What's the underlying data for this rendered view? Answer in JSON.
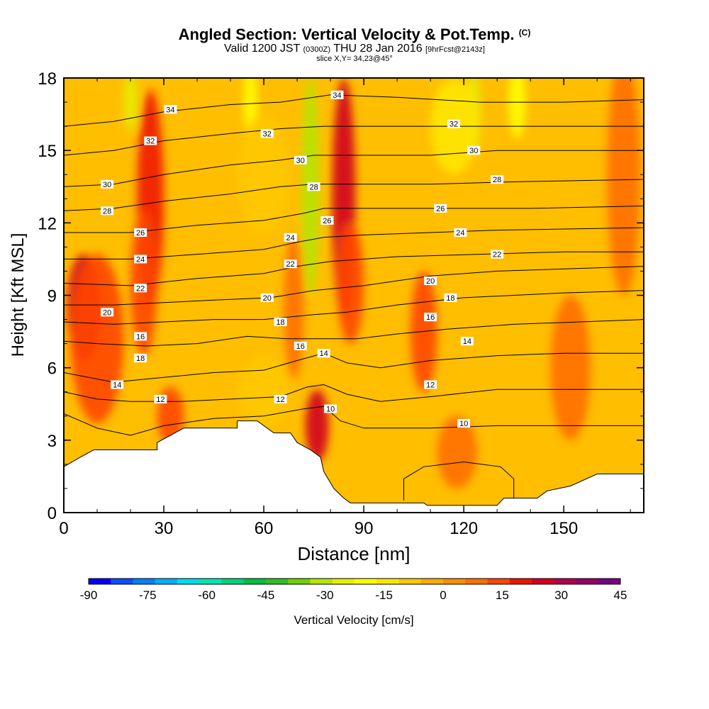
{
  "header": {
    "title": "Angled Section: Vertical Velocity & Pot.Temp.",
    "title_suffix": "(C)",
    "valid_prefix": "Valid 1200 JST",
    "valid_utc": "(0300Z)",
    "valid_date": "THU 28 Jan 2016",
    "forecast": "[9hrFcst@2143z]",
    "slice": "slice X,Y= 34,23@45°"
  },
  "chart_data": {
    "type": "heatmap",
    "title": "Angled Section: Vertical Velocity & Pot.Temp.",
    "xlabel": "Distance [nm]",
    "ylabel": "Height [Kft MSL]",
    "xlim": [
      0,
      174
    ],
    "ylim": [
      0,
      18
    ],
    "x_ticks": [
      "0",
      "30",
      "60",
      "90",
      "120",
      "150"
    ],
    "y_ticks": [
      "0",
      "3",
      "6",
      "9",
      "12",
      "15",
      "18"
    ],
    "colorbar": {
      "label": "Vertical Velocity [cm/s]",
      "tick_labels": [
        "-90",
        "-75",
        "-60",
        "-45",
        "-30",
        "-15",
        "0",
        "15",
        "30",
        "45"
      ],
      "colors": [
        "#0000ff",
        "#0a50ff",
        "#0080ff",
        "#00b0ff",
        "#00dcf0",
        "#00e6b4",
        "#00d278",
        "#00c040",
        "#30c020",
        "#70d000",
        "#b4e600",
        "#e6f000",
        "#ffff00",
        "#ffe600",
        "#ffc800",
        "#ffaa00",
        "#ff8c00",
        "#ff6e00",
        "#ff4600",
        "#f01400",
        "#d2001e",
        "#b40046",
        "#960064",
        "#780082"
      ]
    },
    "terrain_profile_kft": [
      [
        0,
        1.9
      ],
      [
        5,
        2.3
      ],
      [
        9,
        2.6
      ],
      [
        28,
        2.6
      ],
      [
        28,
        2.9
      ],
      [
        32,
        3.2
      ],
      [
        36,
        3.5
      ],
      [
        52,
        3.5
      ],
      [
        52,
        3.8
      ],
      [
        58,
        3.8
      ],
      [
        60,
        3.6
      ],
      [
        63,
        3.3
      ],
      [
        68,
        3.3
      ],
      [
        70,
        2.9
      ],
      [
        74,
        2.6
      ],
      [
        77,
        2.3
      ],
      [
        78,
        1.7
      ],
      [
        81,
        1.0
      ],
      [
        84,
        0.6
      ],
      [
        86,
        0.4
      ],
      [
        108,
        0.4
      ],
      [
        109,
        0.3
      ],
      [
        130,
        0.3
      ],
      [
        132,
        0.6
      ],
      [
        142,
        0.6
      ],
      [
        145,
        0.9
      ],
      [
        152,
        1.1
      ],
      [
        160,
        1.6
      ],
      [
        174,
        1.6
      ]
    ],
    "velocity_cells": [
      {
        "x": 6,
        "y": 8.5,
        "v": 28,
        "sx": 5,
        "sy": 2.2
      },
      {
        "x": 10,
        "y": 7.2,
        "v": 15,
        "sx": 8,
        "sy": 3.5
      },
      {
        "x": 26,
        "y": 13,
        "v": 20,
        "sx": 4,
        "sy": 4.5
      },
      {
        "x": 24,
        "y": 9.5,
        "v": 15,
        "sx": 4,
        "sy": 3
      },
      {
        "x": 32,
        "y": 4,
        "v": 12,
        "sx": 4,
        "sy": 1.2
      },
      {
        "x": 69,
        "y": 8.5,
        "v": 10,
        "sx": 3,
        "sy": 3
      },
      {
        "x": 76,
        "y": 3.6,
        "v": 28,
        "sx": 3.5,
        "sy": 1.5
      },
      {
        "x": 84,
        "y": 13,
        "v": 28,
        "sx": 3.5,
        "sy": 5
      },
      {
        "x": 86,
        "y": 9.5,
        "v": 12,
        "sx": 4,
        "sy": 2.5
      },
      {
        "x": 108,
        "y": 7.5,
        "v": 12,
        "sx": 4,
        "sy": 2.5
      },
      {
        "x": 118,
        "y": 2.5,
        "v": 10,
        "sx": 6,
        "sy": 1.5
      },
      {
        "x": 152,
        "y": 6,
        "v": 8,
        "sx": 6,
        "sy": 3
      },
      {
        "x": 168,
        "y": 14,
        "v": 10,
        "sx": 5,
        "sy": 5
      },
      {
        "x": 20,
        "y": 17,
        "v": -28,
        "sx": 2,
        "sy": 1.2
      },
      {
        "x": 56,
        "y": 17,
        "v": -22,
        "sx": 2,
        "sy": 1.6
      },
      {
        "x": 74,
        "y": 13.5,
        "v": -30,
        "sx": 2.6,
        "sy": 4.5
      },
      {
        "x": 123,
        "y": 16.5,
        "v": -28,
        "sx": 2,
        "sy": 1.8
      },
      {
        "x": 136,
        "y": 17,
        "v": -20,
        "sx": 2.5,
        "sy": 1.5
      },
      {
        "x": 117,
        "y": 16,
        "v": -12,
        "sx": 7,
        "sy": 2
      },
      {
        "x": 60,
        "y": 14,
        "v": -8,
        "sx": 8,
        "sy": 2.5
      },
      {
        "x": 60,
        "y": 5,
        "v": -6,
        "sx": 8,
        "sy": 1.5
      }
    ],
    "isentropes": [
      {
        "value": 10,
        "points": [
          [
            0,
            4.1
          ],
          [
            10,
            3.5
          ],
          [
            20,
            3.2
          ],
          [
            30,
            3.6
          ],
          [
            45,
            3.9
          ],
          [
            60,
            4.0
          ],
          [
            72,
            4.3
          ],
          [
            78,
            4.4
          ],
          [
            83,
            3.8
          ],
          [
            90,
            3.5
          ],
          [
            110,
            3.5
          ],
          [
            130,
            3.6
          ],
          [
            150,
            3.6
          ],
          [
            174,
            3.6
          ]
        ]
      },
      {
        "value": 12,
        "points": [
          [
            0,
            5.0
          ],
          [
            10,
            4.7
          ],
          [
            20,
            4.6
          ],
          [
            35,
            4.6
          ],
          [
            50,
            4.7
          ],
          [
            65,
            4.8
          ],
          [
            73,
            5.2
          ],
          [
            78,
            5.3
          ],
          [
            85,
            4.9
          ],
          [
            95,
            4.6
          ],
          [
            110,
            4.8
          ],
          [
            130,
            5.1
          ],
          [
            150,
            5.1
          ],
          [
            174,
            5.1
          ]
        ]
      },
      {
        "value": 14,
        "points": [
          [
            0,
            5.8
          ],
          [
            15,
            5.4
          ],
          [
            30,
            5.6
          ],
          [
            45,
            5.8
          ],
          [
            60,
            5.9
          ],
          [
            70,
            6.3
          ],
          [
            78,
            6.6
          ],
          [
            85,
            6.2
          ],
          [
            95,
            6.0
          ],
          [
            110,
            6.3
          ],
          [
            130,
            6.5
          ],
          [
            150,
            6.6
          ],
          [
            174,
            6.6
          ]
        ]
      },
      {
        "value": 16,
        "points": [
          [
            0,
            7.1
          ],
          [
            10,
            7.0
          ],
          [
            25,
            6.9
          ],
          [
            40,
            7.0
          ],
          [
            55,
            7.3
          ],
          [
            67,
            7.2
          ],
          [
            78,
            7.2
          ],
          [
            88,
            7.2
          ],
          [
            100,
            7.4
          ],
          [
            115,
            7.6
          ],
          [
            135,
            7.8
          ],
          [
            174,
            8.0
          ]
        ]
      },
      {
        "value": 18,
        "points": [
          [
            0,
            7.9
          ],
          [
            15,
            7.8
          ],
          [
            30,
            7.9
          ],
          [
            45,
            8.0
          ],
          [
            60,
            8.0
          ],
          [
            75,
            8.2
          ],
          [
            85,
            8.3
          ],
          [
            100,
            8.6
          ],
          [
            120,
            8.9
          ],
          [
            150,
            9.1
          ],
          [
            174,
            9.2
          ]
        ]
      },
      {
        "value": 20,
        "points": [
          [
            0,
            8.6
          ],
          [
            15,
            8.6
          ],
          [
            30,
            8.7
          ],
          [
            45,
            8.8
          ],
          [
            62,
            8.9
          ],
          [
            75,
            9.2
          ],
          [
            90,
            9.4
          ],
          [
            110,
            9.8
          ],
          [
            130,
            10.0
          ],
          [
            174,
            10.2
          ]
        ]
      },
      {
        "value": 22,
        "points": [
          [
            0,
            9.5
          ],
          [
            20,
            9.4
          ],
          [
            40,
            9.7
          ],
          [
            60,
            9.9
          ],
          [
            70,
            10.2
          ],
          [
            80,
            10.4
          ],
          [
            100,
            10.6
          ],
          [
            125,
            10.7
          ],
          [
            150,
            10.8
          ],
          [
            174,
            10.8
          ]
        ]
      },
      {
        "value": 24,
        "points": [
          [
            0,
            10.5
          ],
          [
            20,
            10.5
          ],
          [
            40,
            10.7
          ],
          [
            60,
            10.9
          ],
          [
            70,
            11.2
          ],
          [
            78,
            11.4
          ],
          [
            90,
            11.5
          ],
          [
            110,
            11.6
          ],
          [
            130,
            11.7
          ],
          [
            174,
            11.8
          ]
        ]
      },
      {
        "value": 26,
        "points": [
          [
            0,
            11.6
          ],
          [
            20,
            11.6
          ],
          [
            40,
            11.9
          ],
          [
            60,
            12.1
          ],
          [
            72,
            12.4
          ],
          [
            78,
            12.6
          ],
          [
            90,
            12.6
          ],
          [
            115,
            12.6
          ],
          [
            140,
            12.6
          ],
          [
            174,
            12.7
          ]
        ]
      },
      {
        "value": 28,
        "points": [
          [
            0,
            12.5
          ],
          [
            15,
            12.6
          ],
          [
            30,
            12.9
          ],
          [
            50,
            13.2
          ],
          [
            65,
            13.5
          ],
          [
            75,
            13.6
          ],
          [
            90,
            13.6
          ],
          [
            110,
            13.6
          ],
          [
            135,
            13.7
          ],
          [
            174,
            13.8
          ]
        ]
      },
      {
        "value": 30,
        "points": [
          [
            0,
            13.5
          ],
          [
            15,
            13.6
          ],
          [
            30,
            14.0
          ],
          [
            50,
            14.4
          ],
          [
            65,
            14.6
          ],
          [
            75,
            14.8
          ],
          [
            90,
            14.8
          ],
          [
            110,
            14.8
          ],
          [
            130,
            15.0
          ],
          [
            174,
            15.0
          ]
        ]
      },
      {
        "value": 32,
        "points": [
          [
            0,
            14.8
          ],
          [
            15,
            15.0
          ],
          [
            30,
            15.4
          ],
          [
            50,
            15.7
          ],
          [
            65,
            15.9
          ],
          [
            78,
            16.0
          ],
          [
            95,
            16.0
          ],
          [
            115,
            16.0
          ],
          [
            135,
            16.0
          ],
          [
            174,
            16.0
          ]
        ]
      },
      {
        "value": 34,
        "points": [
          [
            0,
            16.0
          ],
          [
            15,
            16.2
          ],
          [
            30,
            16.6
          ],
          [
            50,
            16.9
          ],
          [
            65,
            17.0
          ],
          [
            80,
            17.3
          ],
          [
            100,
            17.2
          ],
          [
            125,
            17.0
          ],
          [
            150,
            17.0
          ],
          [
            174,
            17.1
          ]
        ]
      }
    ],
    "isentrope_labels": [
      {
        "value": 34,
        "x": 32,
        "y": 16.7
      },
      {
        "value": 32,
        "x": 26,
        "y": 15.4
      },
      {
        "value": 30,
        "x": 13,
        "y": 13.6
      },
      {
        "value": 28,
        "x": 13,
        "y": 12.5
      },
      {
        "value": 26,
        "x": 23,
        "y": 11.6
      },
      {
        "value": 24,
        "x": 23,
        "y": 10.5
      },
      {
        "value": 22,
        "x": 23,
        "y": 9.3
      },
      {
        "value": 20,
        "x": 13,
        "y": 8.3
      },
      {
        "value": 16,
        "x": 23,
        "y": 7.3
      },
      {
        "value": 18,
        "x": 23,
        "y": 6.4
      },
      {
        "value": 14,
        "x": 16,
        "y": 5.3
      },
      {
        "value": 12,
        "x": 29,
        "y": 4.7
      },
      {
        "value": 32,
        "x": 61,
        "y": 15.7
      },
      {
        "value": 30,
        "x": 71,
        "y": 14.6
      },
      {
        "value": 28,
        "x": 75,
        "y": 13.5
      },
      {
        "value": 26,
        "x": 79,
        "y": 12.1
      },
      {
        "value": 24,
        "x": 68,
        "y": 11.4
      },
      {
        "value": 22,
        "x": 68,
        "y": 10.3
      },
      {
        "value": 20,
        "x": 61,
        "y": 8.9
      },
      {
        "value": 18,
        "x": 65,
        "y": 7.9
      },
      {
        "value": 16,
        "x": 71,
        "y": 6.9
      },
      {
        "value": 14,
        "x": 78,
        "y": 6.6
      },
      {
        "value": 12,
        "x": 65,
        "y": 4.7
      },
      {
        "value": 10,
        "x": 80,
        "y": 4.3
      },
      {
        "value": 34,
        "x": 82,
        "y": 17.3
      },
      {
        "value": 32,
        "x": 117,
        "y": 16.1
      },
      {
        "value": 30,
        "x": 123,
        "y": 15.0
      },
      {
        "value": 28,
        "x": 130,
        "y": 13.8
      },
      {
        "value": 26,
        "x": 113,
        "y": 12.6
      },
      {
        "value": 24,
        "x": 119,
        "y": 11.6
      },
      {
        "value": 22,
        "x": 130,
        "y": 10.7
      },
      {
        "value": 20,
        "x": 110,
        "y": 9.6
      },
      {
        "value": 18,
        "x": 116,
        "y": 8.9
      },
      {
        "value": 16,
        "x": 110,
        "y": 8.1
      },
      {
        "value": 14,
        "x": 121,
        "y": 7.1
      },
      {
        "value": 12,
        "x": 110,
        "y": 5.3
      },
      {
        "value": 10,
        "x": 120,
        "y": 3.7
      }
    ],
    "closed_contours": [
      {
        "value": 10,
        "points": [
          [
            102,
            0.5
          ],
          [
            102,
            1.4
          ],
          [
            108,
            1.9
          ],
          [
            120,
            2.1
          ],
          [
            131,
            1.9
          ],
          [
            135,
            1.4
          ],
          [
            135,
            0.6
          ]
        ]
      }
    ]
  }
}
